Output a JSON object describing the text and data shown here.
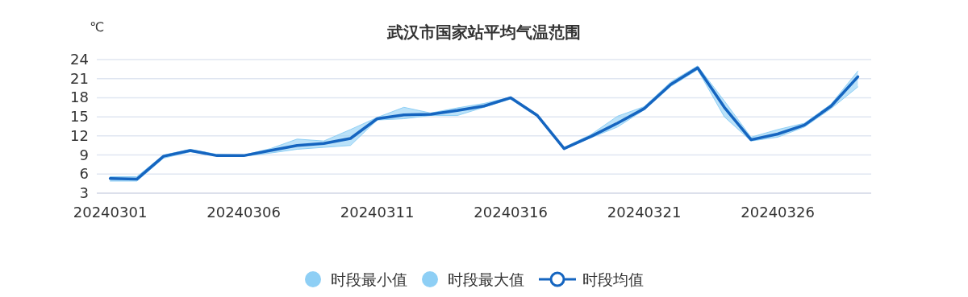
{
  "chart_data": {
    "type": "line",
    "title": "武汉市国家站平均气温范围",
    "ylabel": "℃",
    "categories": [
      "20240301",
      null,
      null,
      null,
      null,
      "20240306",
      null,
      null,
      null,
      null,
      "20240311",
      null,
      null,
      null,
      null,
      "20240316",
      null,
      null,
      null,
      null,
      "20240321",
      null,
      null,
      null,
      null,
      "20240326",
      null,
      null,
      null
    ],
    "series": [
      {
        "name": "时段最小值",
        "color": "#8ecff5",
        "values": [
          4.9,
          4.9,
          8.5,
          9.5,
          8.9,
          8.8,
          9.3,
          9.9,
          10.2,
          10.5,
          14.5,
          14.7,
          15.2,
          15.2,
          16.5,
          17.8,
          15.0,
          9.9,
          11.7,
          13.4,
          16.1,
          19.8,
          22.4,
          15.0,
          11.2,
          11.8,
          13.4,
          16.3,
          19.7
        ]
      },
      {
        "name": "时段最大值",
        "color": "#8ecff5",
        "values": [
          5.6,
          5.6,
          9.0,
          9.9,
          9.1,
          9.0,
          10.0,
          11.5,
          11.2,
          13.0,
          14.9,
          16.5,
          15.6,
          16.4,
          17.1,
          18.1,
          15.4,
          10.2,
          12.2,
          15.1,
          16.6,
          20.5,
          23.0,
          17.5,
          11.8,
          13.0,
          14.0,
          17.0,
          22.2
        ]
      },
      {
        "name": "时段均值",
        "color": "#1565c0",
        "lower": [
          4.9,
          4.9,
          8.5,
          9.5,
          8.9,
          8.8,
          9.3,
          9.9,
          10.2,
          10.5,
          14.5,
          14.7,
          15.2,
          15.2,
          16.5,
          17.8,
          15.0,
          9.9,
          11.7,
          13.4,
          16.1,
          19.8,
          22.4,
          15.0,
          11.2,
          11.8,
          13.4,
          16.3,
          19.7
        ],
        "upper": [
          5.6,
          5.6,
          9.0,
          9.9,
          9.1,
          9.0,
          10.0,
          11.5,
          11.2,
          13.0,
          14.9,
          16.5,
          15.6,
          16.4,
          17.1,
          18.1,
          15.4,
          10.2,
          12.2,
          15.1,
          16.6,
          20.5,
          23.0,
          17.5,
          11.8,
          13.0,
          14.0,
          17.0,
          22.2
        ],
        "values": [
          5.3,
          5.2,
          8.8,
          9.7,
          8.9,
          8.9,
          9.7,
          10.5,
          10.8,
          11.6,
          14.7,
          15.3,
          15.4,
          16.0,
          16.7,
          18.0,
          15.2,
          10.0,
          11.9,
          14.0,
          16.3,
          20.1,
          22.7,
          16.5,
          11.4,
          12.3,
          13.7,
          16.7,
          21.3
        ]
      }
    ],
    "ylim": [
      3,
      24
    ],
    "yticks": [
      3,
      6,
      9,
      12,
      15,
      18,
      21,
      24
    ],
    "grid": "y",
    "legend": "bottom"
  }
}
